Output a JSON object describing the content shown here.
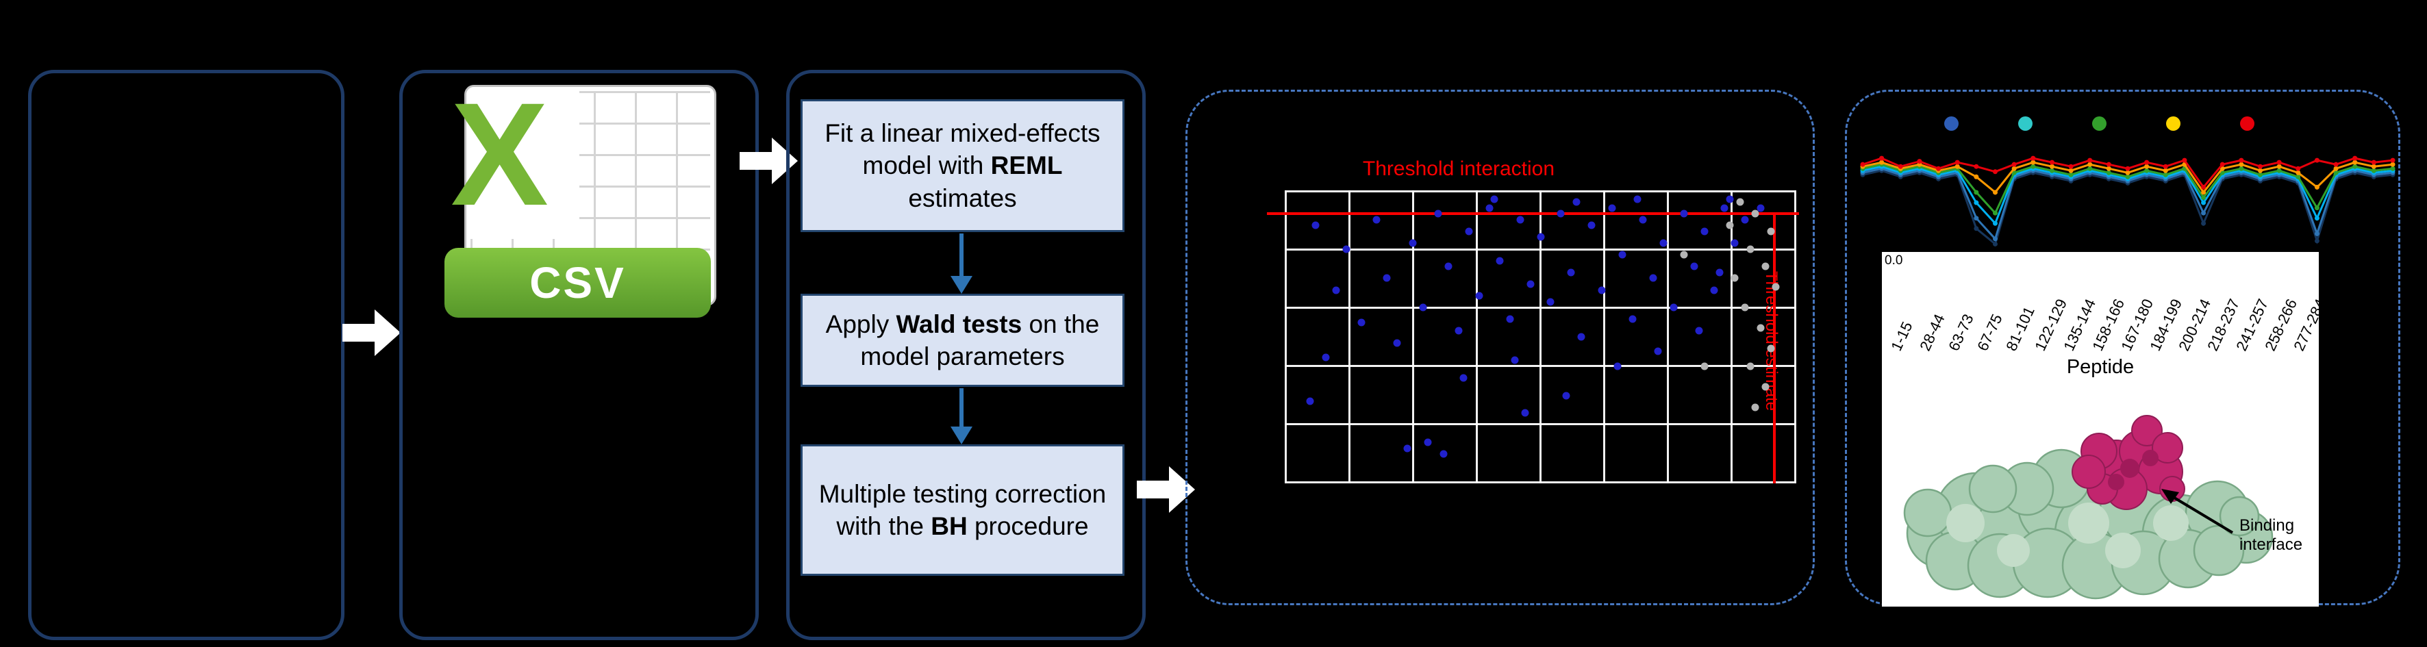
{
  "palette": {
    "box_border": "#1E3A66",
    "dashed_border": "#4777C0",
    "step_fill": "#DAE3F3",
    "accent_blue": "#2E74B5",
    "threshold_red": "#FF0000",
    "csv_green": "#77B636",
    "dot_blue": "#2121CC",
    "dot_gray": "#B5B5B5",
    "protein_green": "#A8CDB2",
    "protein_magenta": "#C2256E"
  },
  "flow": {
    "csv_x": "X",
    "csv_label": "CSV",
    "steps": [
      {
        "pre": "Fit a linear mixed-effects model with ",
        "bold": "REML",
        "post": " estimates"
      },
      {
        "pre": "Apply ",
        "bold": "Wald tests",
        "post": " on the model parameters"
      },
      {
        "line1": "Multiple testing correction",
        "pre": "with the ",
        "bold": "BH",
        "post": " procedure"
      }
    ]
  },
  "protein": {
    "label": "Binding interface"
  },
  "chart_data": [
    {
      "type": "scatter",
      "title": "Threshold interaction",
      "vline_label": "Threshold estimate",
      "hline_y_pct": 7.5,
      "vline_x_pct": 95.4,
      "grid": {
        "cols": 8,
        "rows": 5,
        "grid_on": true
      },
      "points_blue": [
        [
          6,
          12
        ],
        [
          10,
          34
        ],
        [
          8,
          57
        ],
        [
          5,
          72
        ],
        [
          12,
          20
        ],
        [
          15,
          45
        ],
        [
          18,
          10
        ],
        [
          20,
          30
        ],
        [
          22,
          52
        ],
        [
          25,
          18
        ],
        [
          27,
          40
        ],
        [
          24,
          88
        ],
        [
          28,
          86
        ],
        [
          30,
          8
        ],
        [
          32,
          26
        ],
        [
          34,
          48
        ],
        [
          36,
          14
        ],
        [
          38,
          36
        ],
        [
          35,
          64
        ],
        [
          31,
          90
        ],
        [
          40,
          6
        ],
        [
          42,
          24
        ],
        [
          44,
          44
        ],
        [
          46,
          10
        ],
        [
          48,
          32
        ],
        [
          45,
          58
        ],
        [
          47,
          76
        ],
        [
          50,
          16
        ],
        [
          52,
          38
        ],
        [
          54,
          8
        ],
        [
          56,
          28
        ],
        [
          58,
          50
        ],
        [
          55,
          70
        ],
        [
          60,
          12
        ],
        [
          62,
          34
        ],
        [
          64,
          6
        ],
        [
          66,
          22
        ],
        [
          68,
          44
        ],
        [
          65,
          60
        ],
        [
          70,
          10
        ],
        [
          72,
          30
        ],
        [
          74,
          18
        ],
        [
          76,
          40
        ],
        [
          73,
          55
        ],
        [
          78,
          8
        ],
        [
          80,
          26
        ],
        [
          82,
          14
        ],
        [
          84,
          34
        ],
        [
          81,
          48
        ],
        [
          86,
          6
        ],
        [
          88,
          18
        ],
        [
          85,
          28
        ],
        [
          90,
          10
        ],
        [
          41,
          3
        ],
        [
          57,
          4
        ],
        [
          69,
          3
        ],
        [
          87,
          3
        ],
        [
          93,
          6
        ]
      ],
      "points_gray": [
        [
          89,
          4
        ],
        [
          92,
          8
        ],
        [
          95,
          14
        ],
        [
          91,
          20
        ],
        [
          94,
          26
        ],
        [
          96,
          33
        ],
        [
          90,
          40
        ],
        [
          93,
          47
        ],
        [
          95,
          54
        ],
        [
          91,
          60
        ],
        [
          94,
          67
        ],
        [
          92,
          74
        ],
        [
          88,
          30
        ],
        [
          87,
          12
        ],
        [
          78,
          22
        ],
        [
          82,
          60
        ]
      ]
    },
    {
      "type": "line",
      "categories": [
        "1-15",
        "28-44",
        "63-73",
        "67-75",
        "81-101",
        "122-129",
        "135-144",
        "158-166",
        "167-180",
        "184-199",
        "200-214",
        "218-237",
        "241-257",
        "258-266",
        "277-284"
      ],
      "xlabel": "Peptide",
      "y_tick_label": "0.0",
      "legend_dot_colors": [
        "#2E5EB8",
        "#30C9C9",
        "#33A02C",
        "#FFD500",
        "#E8000B"
      ],
      "ylim": [
        0,
        1
      ],
      "series": [
        {
          "name": "navy",
          "color": "#16365C",
          "values": [
            0.72,
            0.76,
            0.7,
            0.74,
            0.68,
            0.72,
            0.2,
            0.05,
            0.68,
            0.74,
            0.7,
            0.66,
            0.72,
            0.68,
            0.64,
            0.7,
            0.66,
            0.72,
            0.25,
            0.68,
            0.72,
            0.66,
            0.7,
            0.64,
            0.08,
            0.68,
            0.74,
            0.7,
            0.72
          ]
        },
        {
          "name": "blue",
          "color": "#2E75B6",
          "values": [
            0.74,
            0.78,
            0.72,
            0.76,
            0.7,
            0.74,
            0.3,
            0.1,
            0.7,
            0.76,
            0.72,
            0.68,
            0.74,
            0.7,
            0.66,
            0.72,
            0.68,
            0.74,
            0.35,
            0.7,
            0.74,
            0.68,
            0.72,
            0.66,
            0.15,
            0.7,
            0.76,
            0.72,
            0.74
          ]
        },
        {
          "name": "cyan",
          "color": "#00B0F0",
          "values": [
            0.76,
            0.8,
            0.74,
            0.78,
            0.72,
            0.76,
            0.45,
            0.25,
            0.72,
            0.78,
            0.74,
            0.7,
            0.76,
            0.72,
            0.68,
            0.74,
            0.7,
            0.76,
            0.45,
            0.72,
            0.76,
            0.7,
            0.74,
            0.68,
            0.3,
            0.72,
            0.78,
            0.74,
            0.76
          ]
        },
        {
          "name": "green",
          "color": "#2FA12C",
          "values": [
            0.78,
            0.82,
            0.76,
            0.8,
            0.74,
            0.78,
            0.55,
            0.35,
            0.74,
            0.8,
            0.76,
            0.72,
            0.78,
            0.74,
            0.7,
            0.76,
            0.72,
            0.78,
            0.5,
            0.74,
            0.78,
            0.72,
            0.76,
            0.7,
            0.4,
            0.74,
            0.8,
            0.76,
            0.78
          ]
        },
        {
          "name": "orange",
          "color": "#FF9900",
          "values": [
            0.8,
            0.84,
            0.78,
            0.82,
            0.76,
            0.8,
            0.7,
            0.55,
            0.78,
            0.84,
            0.8,
            0.76,
            0.82,
            0.78,
            0.74,
            0.8,
            0.76,
            0.82,
            0.55,
            0.78,
            0.82,
            0.76,
            0.8,
            0.74,
            0.6,
            0.78,
            0.84,
            0.8,
            0.82
          ]
        },
        {
          "name": "red",
          "color": "#E8000B",
          "values": [
            0.82,
            0.88,
            0.8,
            0.85,
            0.78,
            0.84,
            0.8,
            0.75,
            0.82,
            0.88,
            0.84,
            0.8,
            0.86,
            0.82,
            0.78,
            0.84,
            0.8,
            0.86,
            0.6,
            0.82,
            0.86,
            0.8,
            0.84,
            0.78,
            0.86,
            0.82,
            0.88,
            0.84,
            0.86
          ]
        }
      ]
    }
  ]
}
